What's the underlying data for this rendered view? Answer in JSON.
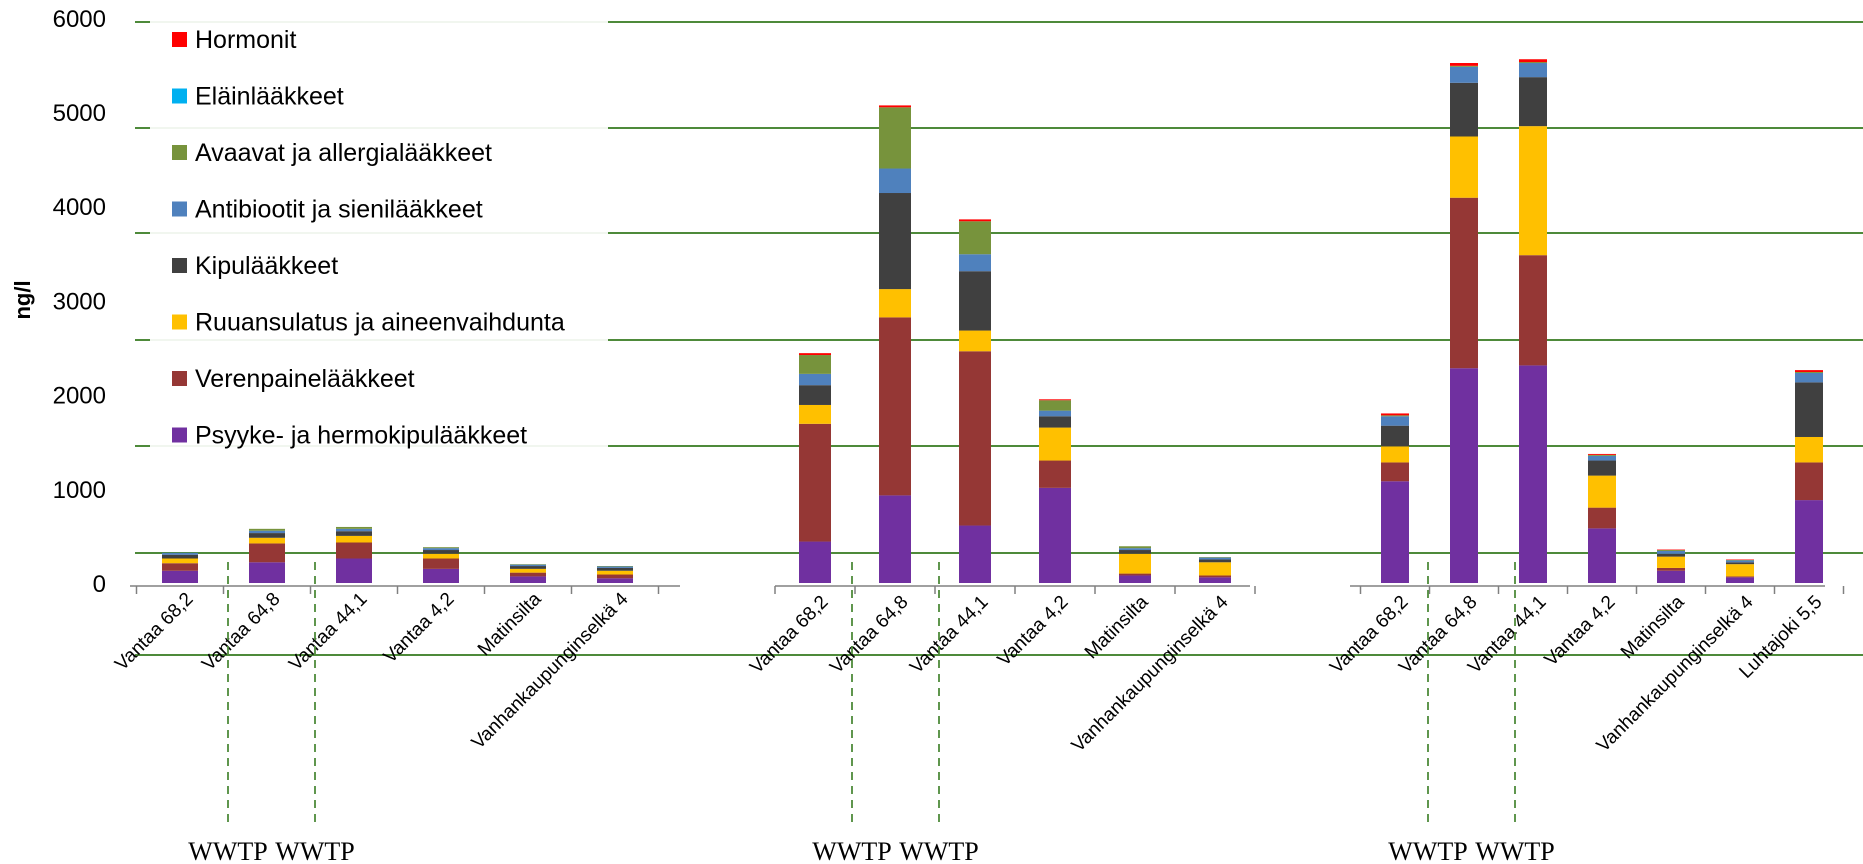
{
  "chart_data": {
    "type": "bar",
    "stacked": true,
    "ylabel": "ng/l",
    "ylim": [
      0,
      6000
    ],
    "yticks": [
      0,
      1000,
      2000,
      3000,
      4000,
      5000,
      6000
    ],
    "grid": "horizontal",
    "legend_position": "top-left",
    "series": [
      {
        "name": "Psyyke- ja hermokipulääkkeet",
        "color": "#7030A0"
      },
      {
        "name": "Verenpainelääkkeet",
        "color": "#953735"
      },
      {
        "name": "Ruuansulatus ja aineenvaihdunta",
        "color": "#FFC000"
      },
      {
        "name": "Kipulääkkeet",
        "color": "#404040"
      },
      {
        "name": "Antibiootit ja sienilääkkeet",
        "color": "#4F81BD"
      },
      {
        "name": "Avaavat ja allergialääkkeet",
        "color": "#77933C"
      },
      {
        "name": "Eläinlääkkeet",
        "color": "#00B0F0"
      },
      {
        "name": "Hormonit",
        "color": "#FF0000"
      }
    ],
    "groups": [
      {
        "categories": [
          "Vantaa 68,2",
          "Vantaa 64,8",
          "Vantaa 44,1",
          "Vantaa 4,2",
          "Matinsilta",
          "Vanhankaupunginselkä 4"
        ],
        "values": [
          [
            130,
            80,
            50,
            40,
            20,
            0,
            0,
            0
          ],
          [
            220,
            200,
            60,
            50,
            25,
            20,
            0,
            0
          ],
          [
            260,
            170,
            70,
            50,
            25,
            20,
            0,
            0
          ],
          [
            150,
            110,
            50,
            40,
            20,
            10,
            0,
            0
          ],
          [
            70,
            40,
            40,
            30,
            15,
            5,
            0,
            0
          ],
          [
            50,
            40,
            40,
            30,
            15,
            5,
            0,
            0
          ]
        ],
        "wwtp_labels": [
          "WWTP",
          "WWTP"
        ]
      },
      {
        "categories": [
          "Vantaa 68,2",
          "Vantaa 64,8",
          "Vantaa 44,1",
          "Vantaa 4,2",
          "Matinsilta",
          "Vanhankaupunginselkä 4"
        ],
        "values": [
          [
            440,
            1250,
            200,
            210,
            120,
            200,
            0,
            20
          ],
          [
            930,
            1890,
            300,
            1020,
            260,
            650,
            0,
            20
          ],
          [
            610,
            1850,
            220,
            630,
            180,
            350,
            0,
            20
          ],
          [
            1010,
            290,
            350,
            120,
            60,
            110,
            0,
            10
          ],
          [
            80,
            20,
            210,
            40,
            20,
            20,
            0,
            0
          ],
          [
            60,
            20,
            140,
            30,
            20,
            5,
            0,
            0
          ]
        ],
        "wwtp_labels": [
          "WWTP",
          "WWTP"
        ]
      },
      {
        "categories": [
          "Vantaa 68,2",
          "Vantaa 64,8",
          "Vantaa 44,1",
          "Vantaa 4,2",
          "Matinsilta",
          "Vanhankaupunginselkä 4",
          "Luhtajoki 5,5"
        ],
        "values": [
          [
            1080,
            200,
            170,
            220,
            100,
            10,
            0,
            20
          ],
          [
            2280,
            1810,
            650,
            570,
            170,
            10,
            0,
            30
          ],
          [
            2310,
            1170,
            1370,
            520,
            150,
            10,
            0,
            30
          ],
          [
            580,
            220,
            340,
            160,
            50,
            10,
            0,
            10
          ],
          [
            130,
            30,
            120,
            30,
            30,
            10,
            0,
            5
          ],
          [
            60,
            10,
            130,
            20,
            20,
            5,
            0,
            5
          ],
          [
            880,
            400,
            270,
            580,
            100,
            10,
            0,
            20
          ]
        ],
        "wwtp_labels": [
          "WWTP",
          "WWTP"
        ]
      }
    ]
  }
}
